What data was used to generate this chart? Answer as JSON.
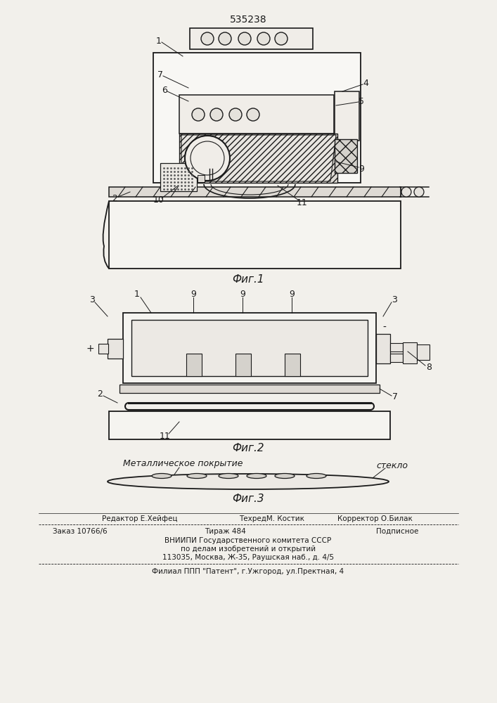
{
  "patent_number": "535238",
  "fig1_label": "Фиг.1",
  "fig2_label": "Фиг.2",
  "fig3_label": "Фиг.3",
  "fig3_label1": "Металлическое покрытие",
  "fig3_label2": "стекло",
  "footer_editor": "Редактор Е.Хейфец",
  "footer_techred": "ТехредМ. Костик",
  "footer_corrector": "Корректор О.Билак",
  "footer_zakaz": "Заказ 10766/6",
  "footer_tirazh": "Тираж 484",
  "footer_podpisnoe": "Подписное",
  "footer_line3": "ВНИИПИ Государственного комитета СССР",
  "footer_line4": "по делам изобретений и открытий",
  "footer_line5": "113035, Москва, Ж-35, Раушская наб., д. 4/5",
  "footer_line6": "Филиал ППП \"Патент\", г.Ужгород, ул.Пректная, 4",
  "bg_color": "#f2f0eb",
  "line_color": "#1a1a1a",
  "text_color": "#1a1a1a"
}
